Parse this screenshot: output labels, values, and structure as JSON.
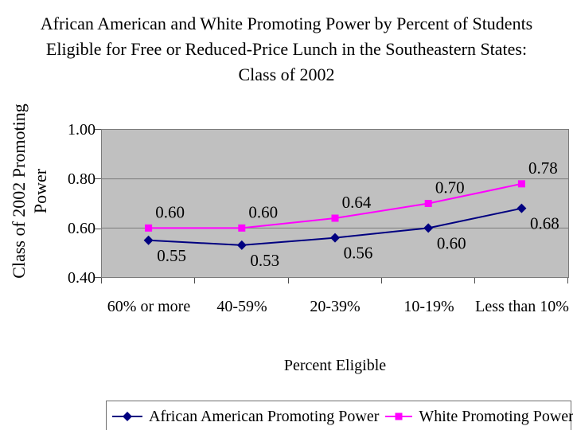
{
  "page": {
    "background": "#FFFFFF"
  },
  "title_lines": [
    "African American and White Promoting Power by Percent of Students",
    "Eligible for Free or Reduced-Price Lunch in the Southeastern States:",
    "Class of 2002"
  ],
  "chart_data": {
    "type": "line",
    "title": "African American and White Promoting Power by Percent of Students Eligible for Free or Reduced-Price Lunch in the Southeastern States: Class of 2002",
    "xlabel": "Percent Eligible",
    "ylabel": "Class of 2002 Promoting Power",
    "ylim": [
      0.4,
      1.0
    ],
    "ytick_labels": [
      "1.00",
      "0.80",
      "0.60",
      "0.40"
    ],
    "gridlines": [
      0.8,
      0.6
    ],
    "grid": true,
    "plot_background": "#C0C0C0",
    "legend_position": "bottom",
    "categories": [
      "60% or more",
      "40-59%",
      "20-39%",
      "10-19%",
      "Less than 10%"
    ],
    "series": [
      {
        "name": "African American Promoting Power",
        "color": "#000080",
        "marker": "diamond",
        "label_side": "below",
        "values": [
          0.55,
          0.53,
          0.56,
          0.6,
          0.68
        ]
      },
      {
        "name": "White Promoting Power",
        "color": "#FF00FF",
        "marker": "square",
        "label_side": "above",
        "values": [
          0.6,
          0.6,
          0.64,
          0.7,
          0.78
        ]
      }
    ]
  }
}
